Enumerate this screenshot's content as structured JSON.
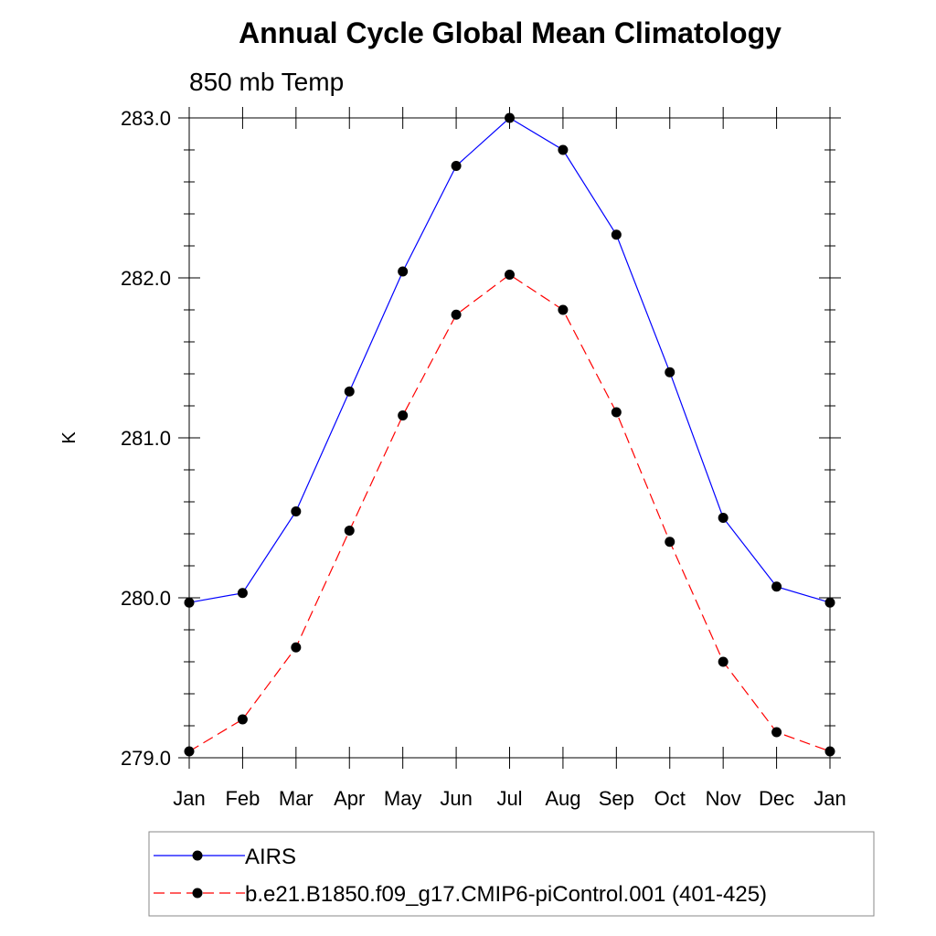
{
  "chart_data": {
    "type": "line",
    "title": "Annual Cycle Global Mean Climatology",
    "subtitle": "850 mb Temp",
    "xlabel": "",
    "ylabel": "K",
    "categories": [
      "Jan",
      "Feb",
      "Mar",
      "Apr",
      "May",
      "Jun",
      "Jul",
      "Aug",
      "Sep",
      "Oct",
      "Nov",
      "Dec",
      "Jan"
    ],
    "ylim": [
      279.0,
      283.0
    ],
    "y_ticks": [
      "279.0",
      "280.0",
      "281.0",
      "282.0",
      "283.0"
    ],
    "y_minor_step": 0.2,
    "grid": false,
    "legend_position": "bottom",
    "series": [
      {
        "name": "AIRS",
        "color": "#0000ff",
        "line_style": "solid",
        "marker": "filled-circle",
        "values": [
          279.97,
          280.03,
          280.54,
          281.29,
          282.04,
          282.7,
          283.0,
          282.8,
          282.27,
          281.41,
          280.5,
          280.07,
          279.97
        ]
      },
      {
        "name": "b.e21.B1850.f09_g17.CMIP6-piControl.001 (401-425)",
        "color": "#ff0000",
        "line_style": "dashed",
        "marker": "filled-circle",
        "values": [
          279.04,
          279.24,
          279.69,
          280.42,
          281.14,
          281.77,
          282.02,
          281.8,
          281.16,
          280.35,
          279.6,
          279.16,
          279.04
        ]
      }
    ]
  }
}
